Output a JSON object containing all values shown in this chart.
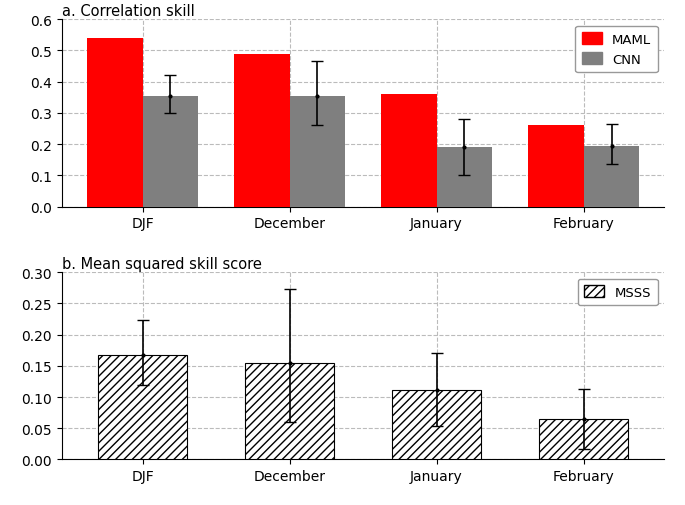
{
  "categories": [
    "DJF",
    "December",
    "January",
    "February"
  ],
  "maml_values": [
    0.54,
    0.49,
    0.36,
    0.26
  ],
  "cnn_values": [
    0.355,
    0.355,
    0.19,
    0.195
  ],
  "cnn_yerr_upper": [
    0.065,
    0.11,
    0.09,
    0.07
  ],
  "cnn_yerr_lower": [
    0.055,
    0.095,
    0.09,
    0.06
  ],
  "msss_values": [
    0.168,
    0.155,
    0.112,
    0.065
  ],
  "msss_yerr_upper": [
    0.055,
    0.118,
    0.058,
    0.048
  ],
  "msss_yerr_lower": [
    0.048,
    0.095,
    0.058,
    0.048
  ],
  "maml_color": "#ff0000",
  "cnn_color": "#7f7f7f",
  "panel_a_title": "a. Correlation skill",
  "panel_b_title": "b. Mean squared skill score",
  "panel_a_ylim": [
    0.0,
    0.6
  ],
  "panel_b_ylim": [
    0.0,
    0.3
  ],
  "panel_a_yticks": [
    0.0,
    0.1,
    0.2,
    0.3,
    0.4,
    0.5,
    0.6
  ],
  "panel_b_yticks": [
    0.0,
    0.05,
    0.1,
    0.15,
    0.2,
    0.25,
    0.3
  ],
  "legend_a_labels": [
    "MAML",
    "CNN"
  ],
  "legend_b_labels": [
    "MSSS"
  ],
  "bar_width": 0.38,
  "background_color": "#ffffff",
  "grid_color": "#bbbbbb",
  "title_fontsize": 10.5,
  "tick_fontsize": 10,
  "legend_fontsize": 9.5
}
